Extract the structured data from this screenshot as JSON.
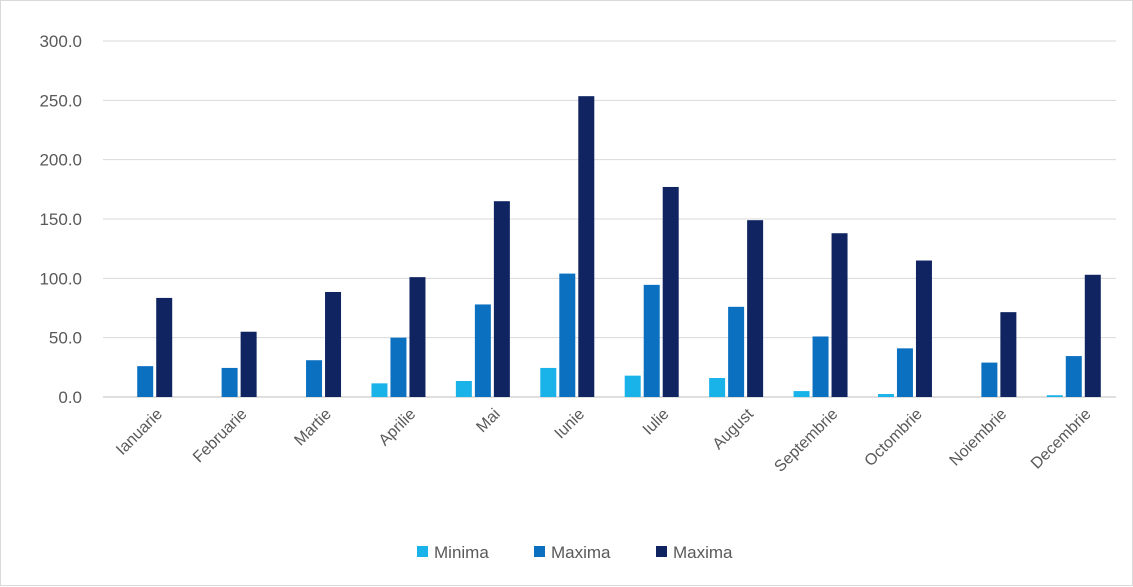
{
  "chart_data": {
    "type": "bar",
    "title": "",
    "xlabel": "",
    "ylabel": "",
    "categories": [
      "Ianuarie",
      "Februarie",
      "Martie",
      "Aprilie",
      "Mai",
      "Iunie",
      "Iulie",
      "August",
      "Septembrie",
      "Octombrie",
      "Noiembrie",
      "Decembrie"
    ],
    "series": [
      {
        "name": "Minima",
        "color": "#19b3ea",
        "values": [
          0,
          0,
          0,
          11.5,
          13.5,
          24.5,
          18,
          16,
          5,
          2.5,
          0,
          1.5
        ]
      },
      {
        "name": "Maxima",
        "color": "#0c70c0",
        "values": [
          26,
          24.5,
          31,
          50,
          78,
          104,
          94.5,
          76,
          51,
          41,
          29,
          34.5
        ]
      },
      {
        "name": "Maxima",
        "color": "#0f2461",
        "values": [
          83.5,
          55,
          88.5,
          101,
          165,
          253.5,
          177,
          149,
          138,
          115,
          71.5,
          103
        ]
      }
    ],
    "ylim": [
      0,
      300
    ],
    "yticks": [
      "0.0",
      "50.0",
      "100.0",
      "150.0",
      "200.0",
      "250.0",
      "300.0"
    ],
    "grid": true,
    "legend_position": "bottom"
  }
}
